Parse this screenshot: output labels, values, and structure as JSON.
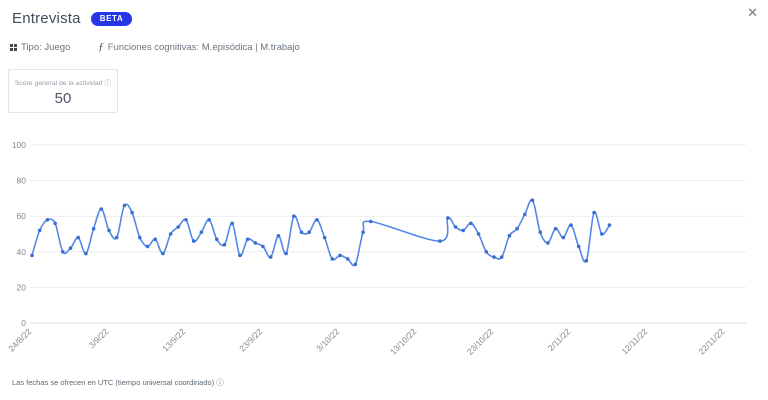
{
  "header": {
    "title": "Entrevista",
    "badge": "BETA"
  },
  "icons": {
    "close": "✕",
    "info": "ⓘ",
    "function": "ƒ",
    "category": "grid-2x2-icon"
  },
  "meta": {
    "tipo": "Tipo: Juego",
    "funciones": "Funciones cognitivas: M.episódica | M.trabajo"
  },
  "score": {
    "label": "Score general de la actividad",
    "value": "50"
  },
  "footer": {
    "note": "Las fechas se ofrecen en UTC (tiempo universal coordinado)"
  },
  "chart_data": {
    "type": "line",
    "title": "",
    "legend": "none",
    "grid": true,
    "x_axis": {
      "unit": "days since first tick (24/8/22)",
      "tick_labels": [
        "24/8/22",
        "3/9/22",
        "13/9/22",
        "23/9/22",
        "3/10/22",
        "13/10/22",
        "23/10/22",
        "2/11/22",
        "12/11/22",
        "22/11/22"
      ],
      "tick_positions_days": [
        0,
        10,
        20,
        30,
        40,
        50,
        60,
        70,
        80,
        90
      ]
    },
    "y_axis": {
      "min": 0,
      "max": 100,
      "ticks": [
        0,
        20,
        40,
        60,
        80,
        100
      ]
    },
    "line_color": "#5488e8",
    "marker_color": "#3a6fd0",
    "grid_color": "#ebebeb",
    "baseline_color": "#d9d9d9",
    "axis_label_color": "#84898f",
    "series": [
      {
        "name": "Score",
        "smooth": true,
        "points": [
          [
            0,
            38
          ],
          [
            1,
            52
          ],
          [
            2,
            58
          ],
          [
            3,
            56
          ],
          [
            4,
            40
          ],
          [
            5,
            42
          ],
          [
            6,
            48
          ],
          [
            7,
            39
          ],
          [
            8,
            53
          ],
          [
            9,
            64
          ],
          [
            10,
            52
          ],
          [
            11,
            48
          ],
          [
            12,
            66
          ],
          [
            13,
            62
          ],
          [
            14,
            48
          ],
          [
            15,
            43
          ],
          [
            16,
            47
          ],
          [
            17,
            39
          ],
          [
            18,
            50
          ],
          [
            19,
            54
          ],
          [
            20,
            58
          ],
          [
            21,
            46
          ],
          [
            22,
            51
          ],
          [
            23,
            58
          ],
          [
            24,
            47
          ],
          [
            25,
            44
          ],
          [
            26,
            56
          ],
          [
            27,
            38
          ],
          [
            28,
            47
          ],
          [
            29,
            45
          ],
          [
            30,
            43
          ],
          [
            31,
            37
          ],
          [
            32,
            49
          ],
          [
            33,
            39
          ],
          [
            34,
            60
          ],
          [
            35,
            51
          ],
          [
            36,
            51
          ],
          [
            37,
            58
          ],
          [
            38,
            48
          ],
          [
            39,
            36
          ],
          [
            40,
            38
          ],
          [
            41,
            36
          ],
          [
            42,
            33
          ],
          [
            43,
            51
          ],
          [
            44,
            57
          ],
          [
            53,
            46
          ],
          [
            54,
            59
          ],
          [
            55,
            54
          ],
          [
            56,
            52
          ],
          [
            57,
            56
          ],
          [
            58,
            50
          ],
          [
            59,
            40
          ],
          [
            60,
            37
          ],
          [
            61,
            37
          ],
          [
            62,
            49
          ],
          [
            63,
            53
          ],
          [
            64,
            61
          ],
          [
            65,
            69
          ],
          [
            66,
            51
          ],
          [
            67,
            45
          ],
          [
            68,
            53
          ],
          [
            69,
            48
          ],
          [
            70,
            55
          ],
          [
            71,
            43
          ],
          [
            72,
            35
          ],
          [
            73,
            62
          ],
          [
            74,
            50
          ],
          [
            75,
            55
          ]
        ]
      }
    ]
  }
}
